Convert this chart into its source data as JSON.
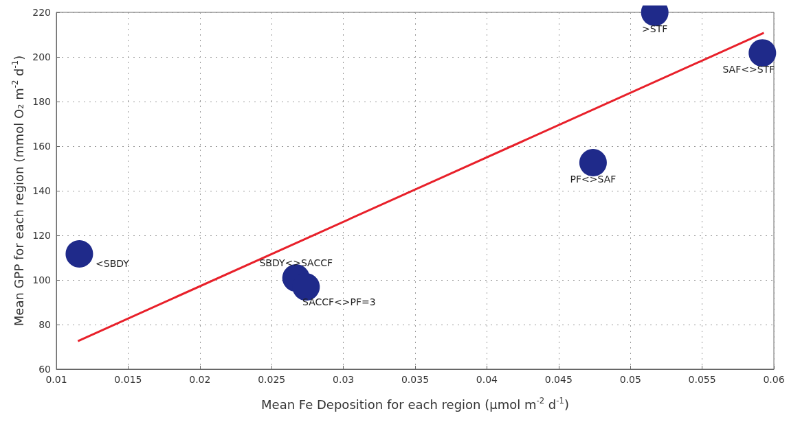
{
  "chart_data": {
    "type": "scatter",
    "xlabel": "Mean Fe Deposition for each region (μmol m$^{-2}$ d$^{-1}$)",
    "ylabel": "Mean GPP for each region (mmol O₂ m$^{-2}$ d$^{-1}$)",
    "x": [
      0.0116,
      0.0267,
      0.0274,
      0.0474,
      0.0517,
      0.0592
    ],
    "series": [
      {
        "color": "#1f2a8a",
        "marker": "circle",
        "values": [
          111.7,
          100.9,
          96.9,
          152.6,
          220,
          201.8
        ]
      },
      {
        "type": "line",
        "color": "#e8202a",
        "x": [
          0.0115,
          0.0593
        ],
        "values": [
          72.6,
          210.8
        ]
      }
    ],
    "annotations": [
      {
        "text": "<SBDY",
        "x": 0.0116,
        "y": 111.7
      },
      {
        "text": "SBDY<>SACCF",
        "x": 0.0267,
        "y": 100.9
      },
      {
        "text": "SACCF<>PF=3",
        "x": 0.0274,
        "y": 96.9
      },
      {
        "text": "PF<>SAF",
        "x": 0.0474,
        "y": 152.6
      },
      {
        "text": ">STF",
        "x": 0.0517,
        "y": 220
      },
      {
        "text": "SAF<>STF",
        "x": 0.0592,
        "y": 201.8
      }
    ],
    "xlim": [
      0.01,
      0.06
    ],
    "xticks": [
      0.01,
      0.015,
      0.02,
      0.025,
      0.03,
      0.035,
      0.04,
      0.045,
      0.05,
      0.055,
      0.06
    ],
    "ylim": [
      60,
      220
    ],
    "yticks": [
      60,
      80,
      100,
      120,
      140,
      160,
      180,
      200,
      220
    ],
    "grid": true
  }
}
